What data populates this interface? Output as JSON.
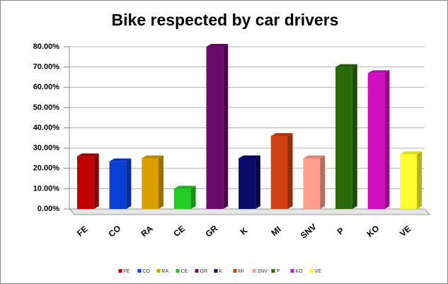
{
  "chart_data": {
    "type": "bar3d",
    "title": "Bike respected by car drivers",
    "categories": [
      "FE",
      "CO",
      "RA",
      "CE",
      "GR",
      "K",
      "MI",
      "SNV",
      "P",
      "KO",
      "VE"
    ],
    "values": [
      26,
      23.5,
      25,
      10,
      80,
      25,
      36,
      25,
      70,
      67,
      27
    ],
    "colors": [
      "#c00000",
      "#0a3fd6",
      "#d9a000",
      "#22cc22",
      "#6a0a6a",
      "#0a0a6a",
      "#d04010",
      "#ff9e8a",
      "#2b6a0a",
      "#d010c0",
      "#ffff30"
    ],
    "ylim": [
      0,
      80
    ],
    "yticks": [
      {
        "value": 0,
        "label": "0.00%"
      },
      {
        "value": 10,
        "label": "10.00%"
      },
      {
        "value": 20,
        "label": "20.00%"
      },
      {
        "value": 30,
        "label": "30.00%"
      },
      {
        "value": 40,
        "label": "40.00%"
      },
      {
        "value": 50,
        "label": "50.00%"
      },
      {
        "value": 60,
        "label": "60.00%"
      },
      {
        "value": 70,
        "label": "70.00%"
      },
      {
        "value": 80,
        "label": "80.00%"
      }
    ],
    "grid": true
  }
}
